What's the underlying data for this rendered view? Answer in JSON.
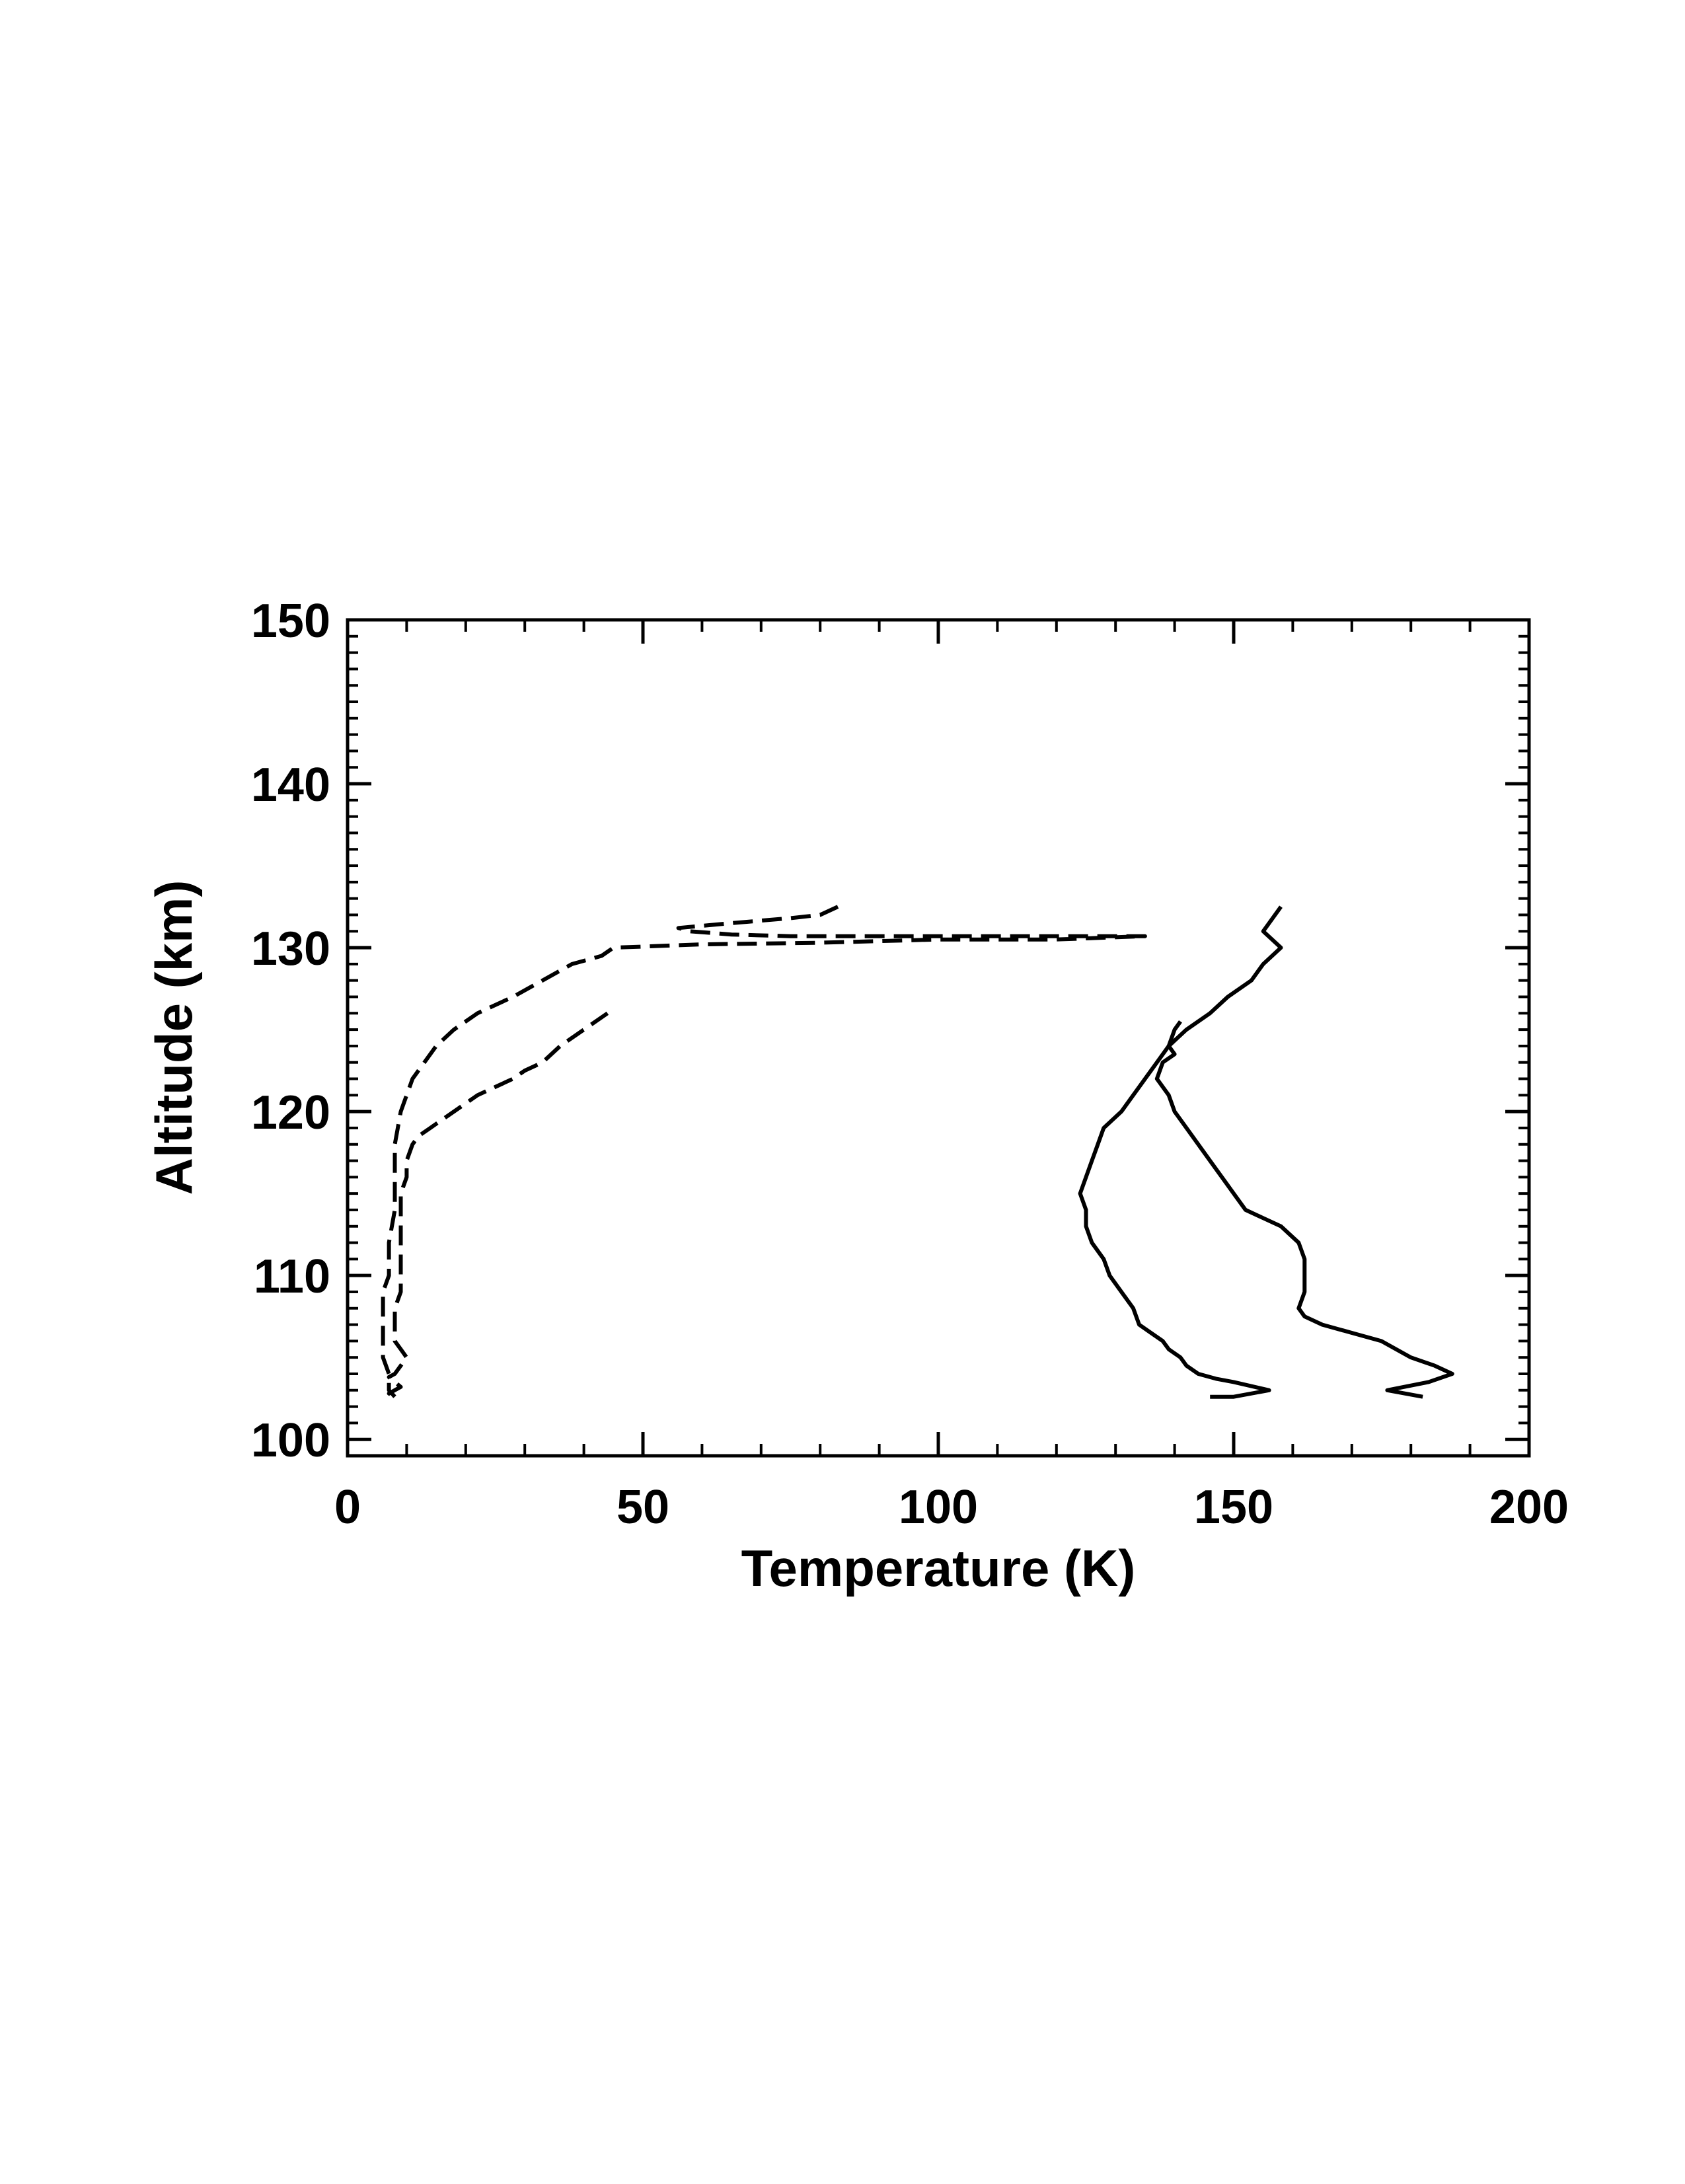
{
  "chart_data": {
    "type": "line",
    "title": "",
    "xlabel": "Temperature (K)",
    "ylabel": "Altitude (km)",
    "xlim": [
      0,
      200
    ],
    "ylim": [
      99,
      150
    ],
    "x_ticks": [
      "0",
      "50",
      "100",
      "150",
      "200"
    ],
    "y_ticks": [
      "100",
      "110",
      "120",
      "130",
      "140",
      "150"
    ],
    "x_tick_values": [
      0,
      50,
      100,
      150,
      200
    ],
    "y_tick_values": [
      100,
      110,
      120,
      130,
      140,
      150
    ],
    "grid": false,
    "legend": "none",
    "series": [
      {
        "style": "solid",
        "x": [
          158,
          155,
          158,
          155,
          153,
          149,
          146,
          142,
          139,
          137,
          135,
          133,
          131,
          128,
          127,
          126,
          125,
          124,
          125,
          125,
          126,
          128,
          129,
          131,
          133,
          134,
          136,
          138,
          139,
          141,
          142,
          144,
          147,
          150,
          156,
          150,
          146
        ],
        "y": [
          132.5,
          131,
          130,
          129,
          128,
          127,
          126,
          125,
          124,
          123,
          122,
          121,
          120,
          119,
          118,
          117,
          116,
          115,
          114,
          113,
          112,
          111,
          110,
          109,
          108,
          107,
          106.5,
          106,
          105.5,
          105,
          104.5,
          104,
          103.7,
          103.5,
          103,
          102.6,
          102.6
        ]
      },
      {
        "style": "solid",
        "x": [
          141,
          140,
          139,
          140,
          138,
          137,
          139,
          140,
          142,
          144,
          146,
          148,
          150,
          152,
          155,
          158,
          161,
          162,
          162,
          162,
          161,
          162,
          165,
          170,
          175,
          180,
          184,
          187,
          183,
          176,
          182
        ],
        "y": [
          125.5,
          125,
          124,
          123.5,
          123,
          122,
          121,
          120,
          119,
          118,
          117,
          116,
          115,
          114,
          113.5,
          113,
          112,
          111,
          110,
          109,
          108,
          107.5,
          107,
          106.5,
          106,
          105,
          104.5,
          104,
          103.5,
          103,
          102.6
        ]
      },
      {
        "style": "dashed",
        "x": [
          83,
          80,
          75,
          65,
          56,
          58,
          65,
          75,
          90,
          110,
          135,
          120,
          100,
          80,
          60,
          45,
          43,
          38,
          33,
          28,
          22,
          18,
          15,
          13,
          11,
          9,
          8,
          8,
          8,
          7,
          7,
          6,
          6,
          6,
          6,
          6,
          7,
          7,
          8
        ],
        "y": [
          132.5,
          132,
          131.8,
          131.5,
          131.2,
          131,
          130.8,
          130.7,
          130.7,
          130.7,
          130.7,
          130.5,
          130.5,
          130.3,
          130.2,
          130,
          129.5,
          129,
          128,
          127,
          126,
          125,
          124,
          123,
          122,
          120,
          118,
          116,
          114,
          112,
          110,
          109,
          108,
          107,
          106,
          105,
          104,
          103,
          102.6
        ]
      },
      {
        "style": "dashed",
        "x": [
          44,
          40,
          36,
          33,
          30,
          28,
          25,
          22,
          20,
          18,
          16,
          14,
          12,
          11,
          10,
          10,
          9,
          9,
          9,
          9,
          9,
          9,
          9,
          8,
          8,
          8,
          8,
          9,
          10,
          9,
          8,
          7,
          8,
          9,
          8,
          7,
          8
        ],
        "y": [
          126,
          125,
          124,
          123,
          122.5,
          122,
          121.5,
          121,
          120.5,
          120,
          119.5,
          119,
          118.5,
          118,
          117,
          116,
          115,
          114,
          113,
          112,
          111,
          110,
          109,
          108,
          107,
          106.5,
          106,
          105.5,
          105,
          104.5,
          104,
          103.8,
          103.5,
          103.2,
          103,
          102.8,
          102.6
        ]
      }
    ]
  }
}
